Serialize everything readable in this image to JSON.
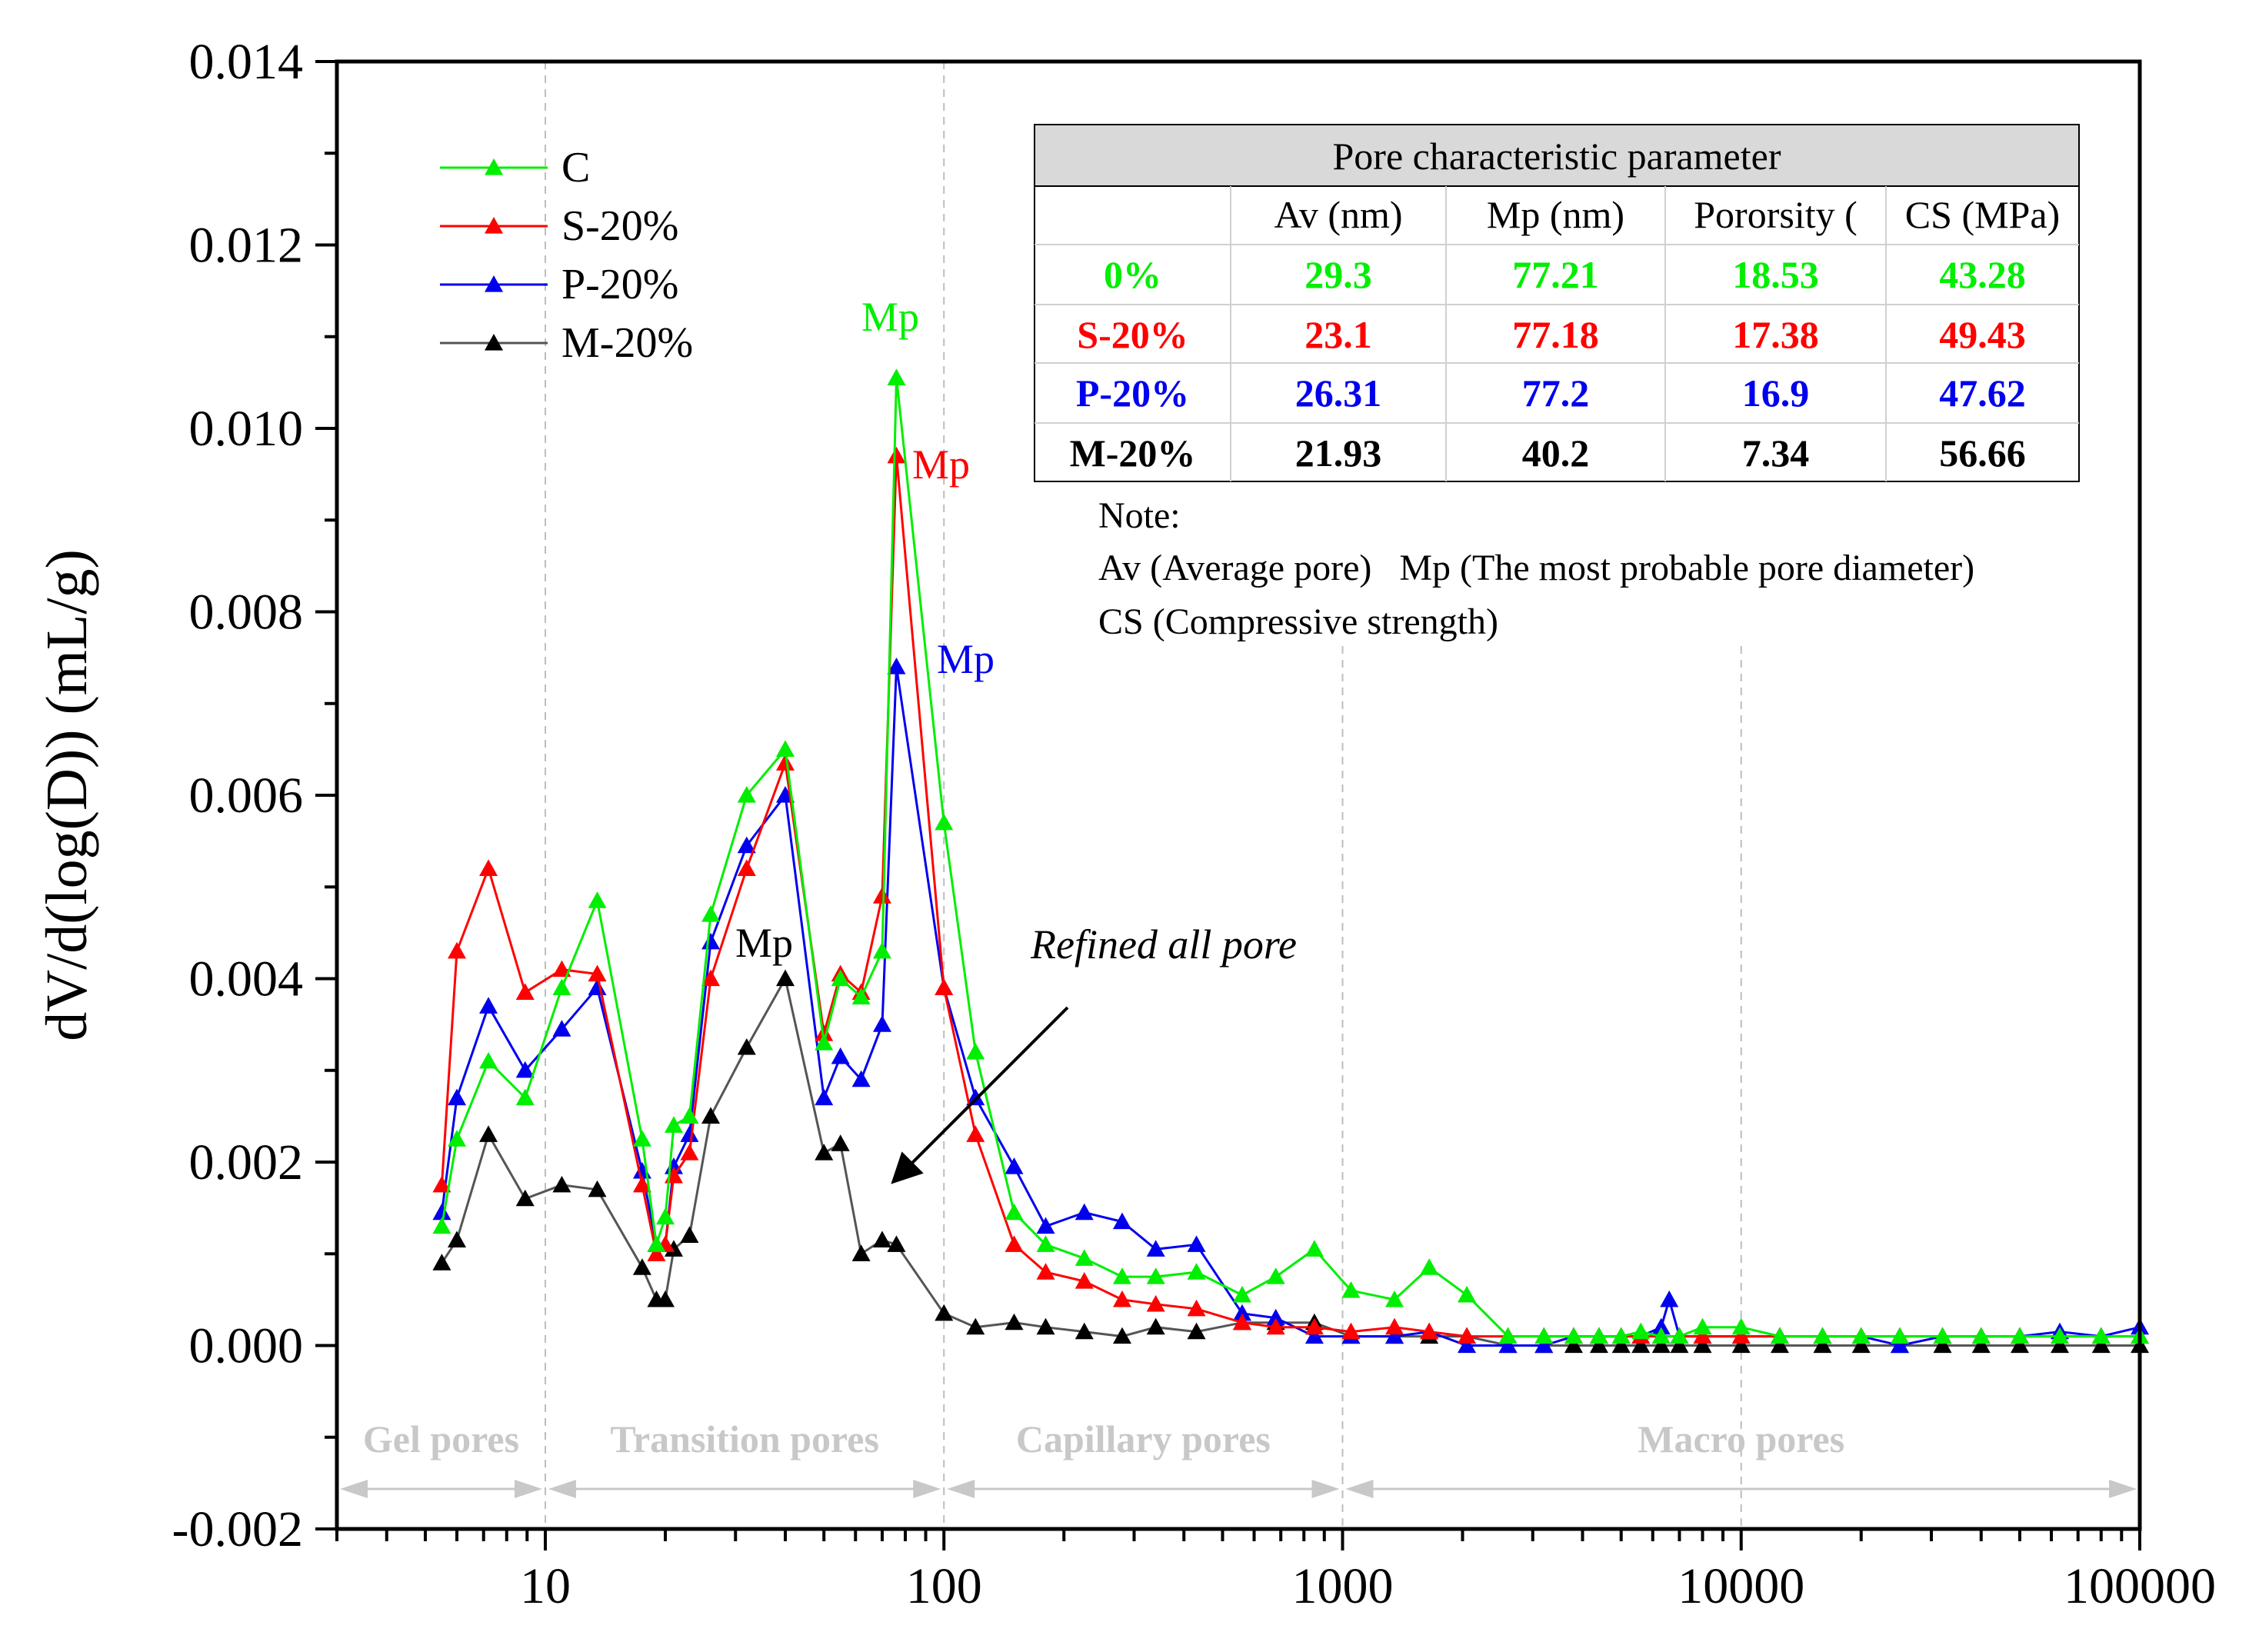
{
  "chart_data": {
    "type": "line",
    "xscale": "log",
    "xlim": [
      3,
      100000
    ],
    "ylim": [
      -0.002,
      0.014
    ],
    "ylabel": "dV/d(log(D))  (mL/g)",
    "xticks": [
      "10",
      "100",
      "1000",
      "10000",
      "100000"
    ],
    "xtick_values": [
      10,
      100,
      1000,
      10000,
      100000
    ],
    "yticks": [
      "-0.002",
      "0.000",
      "0.002",
      "0.004",
      "0.006",
      "0.008",
      "0.010",
      "0.012",
      "0.014"
    ],
    "ytick_values": [
      -0.002,
      0.0,
      0.002,
      0.004,
      0.006,
      0.008,
      0.01,
      0.012,
      0.014
    ],
    "series": [
      {
        "name": "C",
        "color": "#00ee00",
        "x": [
          5.5,
          6,
          7.2,
          8.9,
          11,
          13.5,
          17.5,
          19,
          20,
          21,
          23,
          26,
          32,
          40,
          50,
          55,
          62,
          70,
          76,
          100,
          120,
          150,
          180,
          225,
          280,
          340,
          430,
          560,
          680,
          850,
          1050,
          1350,
          1650,
          2050,
          2600,
          3200,
          3800,
          4400,
          5000,
          5600,
          6300,
          7000,
          8000,
          10000,
          12500,
          16000,
          20000,
          25000,
          32000,
          40000,
          50000,
          63000,
          80000,
          100000
        ],
        "y": [
          0.0013,
          0.00225,
          0.0031,
          0.0027,
          0.0039,
          0.00485,
          0.00225,
          0.0011,
          0.0014,
          0.0024,
          0.0025,
          0.0047,
          0.006,
          0.0065,
          0.0033,
          0.004,
          0.0038,
          0.0043,
          0.01055,
          0.0057,
          0.0032,
          0.00145,
          0.0011,
          0.00095,
          0.00075,
          0.00075,
          0.0008,
          0.00055,
          0.00075,
          0.00105,
          0.0006,
          0.0005,
          0.00085,
          0.00055,
          0.0001,
          0.0001,
          0.0001,
          0.0001,
          0.0001,
          0.00015,
          0.0001,
          0.0001,
          0.0002,
          0.0002,
          0.0001,
          0.0001,
          0.0001,
          0.0001,
          0.0001,
          0.0001,
          0.0001,
          0.0001,
          0.0001,
          0.0001
        ]
      },
      {
        "name": "S-20%",
        "color": "#ff0000",
        "x": [
          5.5,
          6,
          7.2,
          8.9,
          11,
          13.5,
          17.5,
          19,
          20,
          21,
          23,
          26,
          32,
          40,
          50,
          55,
          62,
          70,
          76,
          100,
          120,
          150,
          180,
          225,
          280,
          340,
          430,
          560,
          680,
          850,
          1050,
          1350,
          1650,
          2050,
          2600,
          3200,
          3800,
          4400,
          5000,
          5600,
          6300,
          7000,
          8000,
          10000,
          12500,
          16000,
          20000,
          25000,
          32000,
          40000,
          50000,
          63000,
          80000,
          100000
        ],
        "y": [
          0.00175,
          0.0043,
          0.0052,
          0.00385,
          0.0041,
          0.00405,
          0.00175,
          0.001,
          0.0011,
          0.00185,
          0.0021,
          0.004,
          0.0052,
          0.00635,
          0.0034,
          0.00405,
          0.00385,
          0.0049,
          0.0097,
          0.0039,
          0.0023,
          0.0011,
          0.0008,
          0.0007,
          0.0005,
          0.00045,
          0.0004,
          0.00025,
          0.0002,
          0.0002,
          0.00015,
          0.0002,
          0.00015,
          0.0001,
          0.0001,
          0.0001,
          0.0001,
          0.0001,
          0.0001,
          0.0001,
          0.0001,
          0.0001,
          0.0001,
          0.0001,
          0.0001,
          0.0001,
          0.0001,
          0.0001,
          0.0001,
          0.0001,
          0.0001,
          0.0001,
          0.0001,
          0.0001
        ]
      },
      {
        "name": "P-20%",
        "color": "#0000ee",
        "x": [
          5.5,
          6,
          7.2,
          8.9,
          11,
          13.5,
          17.5,
          19,
          20,
          21,
          23,
          26,
          32,
          40,
          50,
          55,
          62,
          70,
          76,
          100,
          120,
          150,
          180,
          225,
          280,
          340,
          430,
          560,
          680,
          850,
          1050,
          1350,
          1650,
          2050,
          2600,
          3200,
          3800,
          4400,
          5000,
          5600,
          6300,
          6600,
          7000,
          8000,
          10000,
          12500,
          16000,
          20000,
          25000,
          32000,
          40000,
          50000,
          63000,
          80000,
          100000
        ],
        "y": [
          0.00145,
          0.0027,
          0.0037,
          0.003,
          0.00345,
          0.0039,
          0.0019,
          0.0011,
          0.0011,
          0.00195,
          0.0023,
          0.0044,
          0.00545,
          0.006,
          0.0027,
          0.00315,
          0.0029,
          0.0035,
          0.0074,
          0.0039,
          0.0027,
          0.00195,
          0.0013,
          0.00145,
          0.00135,
          0.00105,
          0.0011,
          0.00035,
          0.0003,
          0.0001,
          0.0001,
          0.0001,
          0.00015,
          0.0,
          0.0,
          0.0,
          0.0001,
          0.0001,
          0.0001,
          0.0001,
          0.0002,
          0.0005,
          0.0001,
          0.0001,
          0.0001,
          0.0001,
          0.0001,
          0.0001,
          0.0,
          0.0001,
          0.0001,
          0.0001,
          0.00015,
          0.0001,
          0.0002
        ]
      },
      {
        "name": "M-20%",
        "color": "#000000",
        "x": [
          5.5,
          6,
          7.2,
          8.9,
          11,
          13.5,
          17.5,
          19,
          20,
          21,
          23,
          26,
          32,
          40,
          50,
          55,
          62,
          70,
          76,
          100,
          120,
          150,
          180,
          225,
          280,
          340,
          430,
          560,
          680,
          850,
          1050,
          1350,
          1650,
          2050,
          2600,
          3200,
          3800,
          4400,
          5000,
          5600,
          6300,
          7000,
          8000,
          10000,
          12500,
          16000,
          20000,
          25000,
          32000,
          40000,
          50000,
          63000,
          80000,
          100000
        ],
        "y": [
          0.0009,
          0.00115,
          0.0023,
          0.0016,
          0.00175,
          0.0017,
          0.00085,
          0.0005,
          0.0005,
          0.00105,
          0.0012,
          0.0025,
          0.00325,
          0.004,
          0.0021,
          0.0022,
          0.001,
          0.00115,
          0.0011,
          0.00035,
          0.0002,
          0.00025,
          0.0002,
          0.00015,
          0.0001,
          0.0002,
          0.00015,
          0.00025,
          0.00025,
          0.00025,
          0.0001,
          0.0001,
          0.0001,
          0.0001,
          0.0,
          0.0,
          0.0,
          0.0,
          0.0,
          0.0,
          0.0,
          0.0,
          0.0,
          0.0,
          0.0,
          0.0,
          0.0,
          0.0,
          0.0,
          0.0,
          0.0,
          0.0,
          0.0,
          0.0
        ]
      }
    ],
    "mp_labels": [
      {
        "text": "Mp",
        "series": "C",
        "color": "#00ee00"
      },
      {
        "text": "Mp",
        "series": "S-20%",
        "color": "#ff0000"
      },
      {
        "text": "Mp",
        "series": "P-20%",
        "color": "#0000ee"
      },
      {
        "text": "Mp",
        "series": "M-20%",
        "color": "#000000"
      }
    ],
    "annotation": "Refined all pore",
    "regions": [
      {
        "label": "Gel pores",
        "from": 3,
        "to": 10
      },
      {
        "label": "Transition pores",
        "from": 10,
        "to": 100
      },
      {
        "label": "Capillary pores",
        "from": 100,
        "to": 1000
      },
      {
        "label": "Macro pores",
        "from": 1000,
        "to": 100000
      }
    ],
    "region_dividers": [
      10,
      100,
      1000,
      10000
    ],
    "legend_position": "top-left",
    "grid": false
  },
  "table": {
    "title": "Pore characteristic parameter",
    "headers": [
      "",
      "Av (nm)",
      "Mp (nm)",
      "Pororsity (",
      "CS (MPa)"
    ],
    "rows": [
      {
        "label": "0%",
        "color": "#00ee00",
        "values": [
          "29.3",
          "77.21",
          "18.53",
          "43.28"
        ]
      },
      {
        "label": "S-20%",
        "color": "#ff0000",
        "values": [
          "23.1",
          "77.18",
          "17.38",
          "49.43"
        ]
      },
      {
        "label": "P-20%",
        "color": "#0000ee",
        "values": [
          "26.31",
          "77.2",
          "16.9",
          "47.62"
        ]
      },
      {
        "label": "M-20%",
        "color": "#000000",
        "values": [
          "21.93",
          "40.2",
          "7.34",
          "56.66"
        ]
      }
    ]
  },
  "notes": {
    "title": "Note:",
    "line1": "Av (Average pore)   Mp (The most probable pore diameter)",
    "line2": "CS (Compressive strength)"
  }
}
